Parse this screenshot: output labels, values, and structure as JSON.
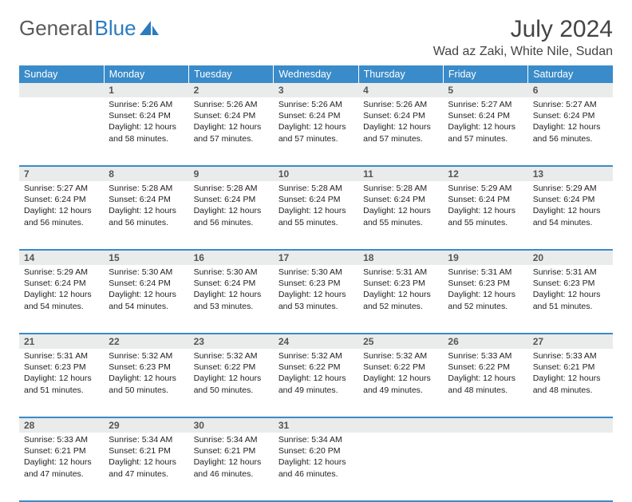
{
  "brand": {
    "part1": "General",
    "part2": "Blue"
  },
  "title": "July 2024",
  "location": "Wad az Zaki, White Nile, Sudan",
  "colors": {
    "header_bg": "#3a8bc9",
    "header_text": "#ffffff",
    "daynum_bg": "#e9eceb",
    "row_border": "#3a8bc9",
    "logo_gray": "#5a5a5a",
    "logo_blue": "#2b7bbf"
  },
  "weekdays": [
    "Sunday",
    "Monday",
    "Tuesday",
    "Wednesday",
    "Thursday",
    "Friday",
    "Saturday"
  ],
  "weeks": [
    [
      null,
      {
        "n": "1",
        "sr": "5:26 AM",
        "ss": "6:24 PM",
        "dl": "12 hours and 58 minutes."
      },
      {
        "n": "2",
        "sr": "5:26 AM",
        "ss": "6:24 PM",
        "dl": "12 hours and 57 minutes."
      },
      {
        "n": "3",
        "sr": "5:26 AM",
        "ss": "6:24 PM",
        "dl": "12 hours and 57 minutes."
      },
      {
        "n": "4",
        "sr": "5:26 AM",
        "ss": "6:24 PM",
        "dl": "12 hours and 57 minutes."
      },
      {
        "n": "5",
        "sr": "5:27 AM",
        "ss": "6:24 PM",
        "dl": "12 hours and 57 minutes."
      },
      {
        "n": "6",
        "sr": "5:27 AM",
        "ss": "6:24 PM",
        "dl": "12 hours and 56 minutes."
      }
    ],
    [
      {
        "n": "7",
        "sr": "5:27 AM",
        "ss": "6:24 PM",
        "dl": "12 hours and 56 minutes."
      },
      {
        "n": "8",
        "sr": "5:28 AM",
        "ss": "6:24 PM",
        "dl": "12 hours and 56 minutes."
      },
      {
        "n": "9",
        "sr": "5:28 AM",
        "ss": "6:24 PM",
        "dl": "12 hours and 56 minutes."
      },
      {
        "n": "10",
        "sr": "5:28 AM",
        "ss": "6:24 PM",
        "dl": "12 hours and 55 minutes."
      },
      {
        "n": "11",
        "sr": "5:28 AM",
        "ss": "6:24 PM",
        "dl": "12 hours and 55 minutes."
      },
      {
        "n": "12",
        "sr": "5:29 AM",
        "ss": "6:24 PM",
        "dl": "12 hours and 55 minutes."
      },
      {
        "n": "13",
        "sr": "5:29 AM",
        "ss": "6:24 PM",
        "dl": "12 hours and 54 minutes."
      }
    ],
    [
      {
        "n": "14",
        "sr": "5:29 AM",
        "ss": "6:24 PM",
        "dl": "12 hours and 54 minutes."
      },
      {
        "n": "15",
        "sr": "5:30 AM",
        "ss": "6:24 PM",
        "dl": "12 hours and 54 minutes."
      },
      {
        "n": "16",
        "sr": "5:30 AM",
        "ss": "6:24 PM",
        "dl": "12 hours and 53 minutes."
      },
      {
        "n": "17",
        "sr": "5:30 AM",
        "ss": "6:23 PM",
        "dl": "12 hours and 53 minutes."
      },
      {
        "n": "18",
        "sr": "5:31 AM",
        "ss": "6:23 PM",
        "dl": "12 hours and 52 minutes."
      },
      {
        "n": "19",
        "sr": "5:31 AM",
        "ss": "6:23 PM",
        "dl": "12 hours and 52 minutes."
      },
      {
        "n": "20",
        "sr": "5:31 AM",
        "ss": "6:23 PM",
        "dl": "12 hours and 51 minutes."
      }
    ],
    [
      {
        "n": "21",
        "sr": "5:31 AM",
        "ss": "6:23 PM",
        "dl": "12 hours and 51 minutes."
      },
      {
        "n": "22",
        "sr": "5:32 AM",
        "ss": "6:23 PM",
        "dl": "12 hours and 50 minutes."
      },
      {
        "n": "23",
        "sr": "5:32 AM",
        "ss": "6:22 PM",
        "dl": "12 hours and 50 minutes."
      },
      {
        "n": "24",
        "sr": "5:32 AM",
        "ss": "6:22 PM",
        "dl": "12 hours and 49 minutes."
      },
      {
        "n": "25",
        "sr": "5:32 AM",
        "ss": "6:22 PM",
        "dl": "12 hours and 49 minutes."
      },
      {
        "n": "26",
        "sr": "5:33 AM",
        "ss": "6:22 PM",
        "dl": "12 hours and 48 minutes."
      },
      {
        "n": "27",
        "sr": "5:33 AM",
        "ss": "6:21 PM",
        "dl": "12 hours and 48 minutes."
      }
    ],
    [
      {
        "n": "28",
        "sr": "5:33 AM",
        "ss": "6:21 PM",
        "dl": "12 hours and 47 minutes."
      },
      {
        "n": "29",
        "sr": "5:34 AM",
        "ss": "6:21 PM",
        "dl": "12 hours and 47 minutes."
      },
      {
        "n": "30",
        "sr": "5:34 AM",
        "ss": "6:21 PM",
        "dl": "12 hours and 46 minutes."
      },
      {
        "n": "31",
        "sr": "5:34 AM",
        "ss": "6:20 PM",
        "dl": "12 hours and 46 minutes."
      },
      null,
      null,
      null
    ]
  ],
  "labels": {
    "sunrise": "Sunrise:",
    "sunset": "Sunset:",
    "daylight": "Daylight:"
  }
}
